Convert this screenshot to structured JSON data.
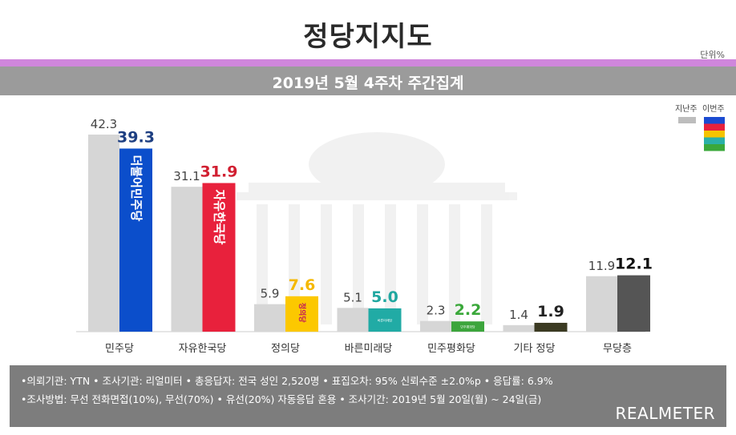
{
  "header": {
    "title": "정당지지도",
    "unit": "단위%",
    "subtitle": "2019년 5월 4주차 주간집계"
  },
  "legend": {
    "prev_label": "지난주",
    "curr_label": "이번주",
    "prev_color": "#c8c8c8",
    "curr_colors": [
      "#1b4bd1",
      "#e8213c",
      "#f5c400",
      "#2ab0a8",
      "#3aa83a"
    ]
  },
  "chart_data": {
    "type": "bar",
    "title": "정당지지도",
    "subtitle": "2019년 5월 4주차 주간집계",
    "unit": "단위%",
    "categories": [
      "민주당",
      "자유한국당",
      "정의당",
      "바른미래당",
      "민주평화당",
      "기타 정당",
      "무당층"
    ],
    "series": [
      {
        "name": "지난주",
        "values": [
          42.3,
          31.1,
          5.9,
          5.1,
          2.3,
          1.4,
          11.9
        ],
        "color": "#d6d6d6"
      },
      {
        "name": "이번주",
        "values": [
          39.3,
          31.9,
          7.6,
          5.0,
          2.2,
          1.9,
          12.1
        ],
        "colors": [
          "#0b4ecb",
          "#e8213c",
          "#fcc800",
          "#21aba5",
          "#3ca53c",
          "#3b3a22",
          "#555555"
        ],
        "label_colors": [
          "#1e3f82",
          "#d11f31",
          "#f5b800",
          "#1fa7a0",
          "#3aa83a",
          "#222222",
          "#111111"
        ]
      }
    ],
    "bar_logos": [
      "더불어민주당",
      "자유한국당",
      "정의당",
      "바른미래당",
      "민주평화당",
      "",
      ""
    ],
    "ylim": [
      0,
      45
    ],
    "grid": false,
    "legend_position": "top-right"
  },
  "footer": {
    "line1": "•의뢰기관: YTN • 조사기관: 리얼미터 • 총응답자: 전국 성인 2,520명 • 표집오차: 95% 신뢰수준 ±2.0%p • 응답률: 6.9%",
    "line2": "•조사방법: 무선 전화면접(10%), 무선(70%) • 유선(20%) 자동응답 혼용 • 조사기간: 2019년 5월 20일(월) ~ 24일(금)",
    "brand": "REALMETER"
  }
}
